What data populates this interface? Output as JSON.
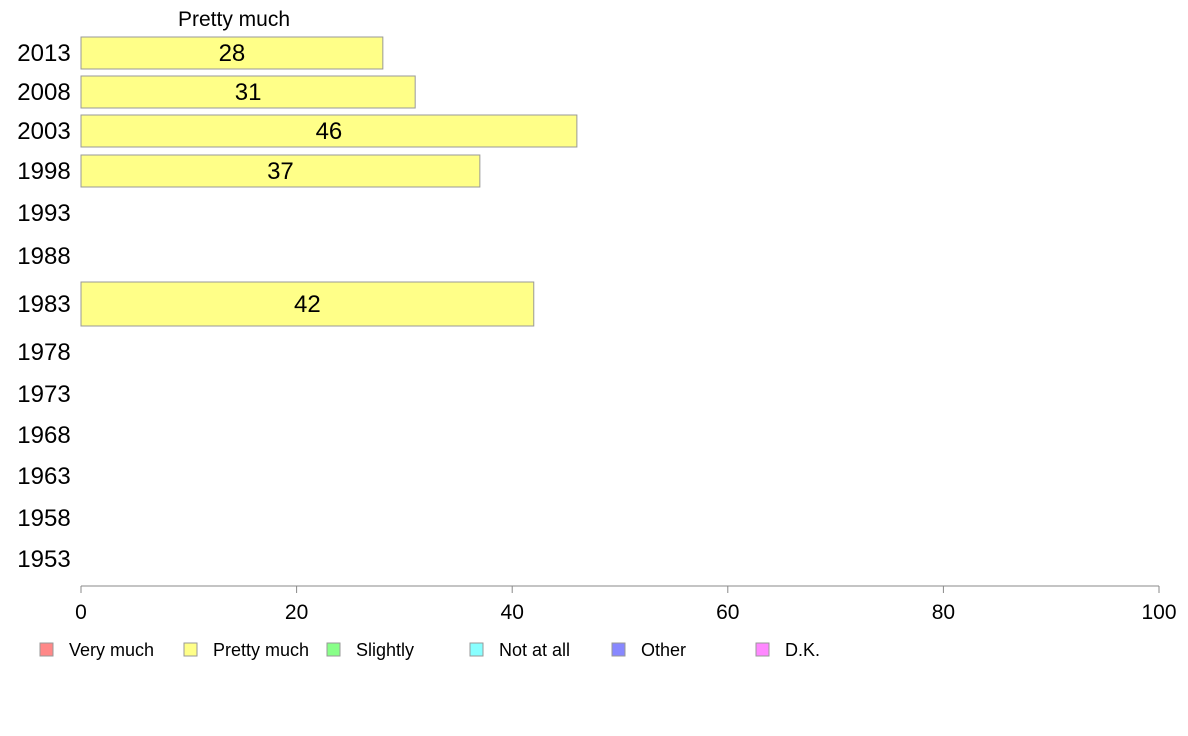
{
  "chart_data": {
    "type": "bar",
    "orientation": "horizontal",
    "series_title": "Pretty much",
    "categories": [
      "2013",
      "2008",
      "2003",
      "1998",
      "1993",
      "1988",
      "1983",
      "1978",
      "1973",
      "1968",
      "1963",
      "1958",
      "1953"
    ],
    "series": [
      {
        "name": "Pretty much",
        "color": "#ffff88",
        "values": [
          28,
          31,
          46,
          37,
          null,
          null,
          42,
          null,
          null,
          null,
          null,
          null,
          null
        ]
      }
    ],
    "xlim": [
      0,
      100
    ],
    "xticks": [
      0,
      20,
      40,
      60,
      80,
      100
    ],
    "grid": false,
    "legend": {
      "position": "bottom-left",
      "items": [
        {
          "label": "Very much",
          "color": "#ff8888"
        },
        {
          "label": "Pretty much",
          "color": "#ffff88"
        },
        {
          "label": "Slightly",
          "color": "#88ff88"
        },
        {
          "label": "Not at all",
          "color": "#88ffff"
        },
        {
          "label": "Other",
          "color": "#8888ff"
        },
        {
          "label": "D.K.",
          "color": "#ff88ff"
        }
      ]
    }
  }
}
